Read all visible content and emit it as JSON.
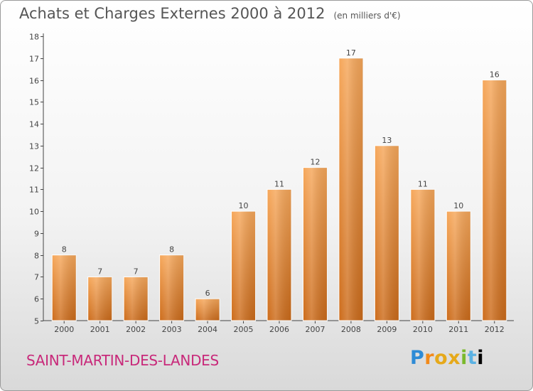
{
  "header": {
    "title": "Achats et Charges Externes 2000 à 2012",
    "unit": "(en milliers d'€)"
  },
  "footer": {
    "commune": "SAINT-MARTIN-DES-LANDES",
    "logo": "Proxiti"
  },
  "colors": {
    "bar_top": "#f6a75a",
    "bar_bottom": "#cc6b1a",
    "axis": "#444444",
    "text": "#444444"
  },
  "chart_data": {
    "type": "bar",
    "categories": [
      "2000",
      "2001",
      "2002",
      "2003",
      "2004",
      "2005",
      "2006",
      "2007",
      "2008",
      "2009",
      "2010",
      "2011",
      "2012"
    ],
    "values": [
      8,
      7,
      7,
      8,
      6,
      10,
      11,
      12,
      17,
      13,
      11,
      10,
      16
    ],
    "title": "Achats et Charges Externes 2000 à 2012",
    "xlabel": "",
    "ylabel": "",
    "ylim": [
      5,
      18
    ],
    "yticks": [
      5,
      6,
      7,
      8,
      9,
      10,
      11,
      12,
      13,
      14,
      15,
      16,
      17,
      18
    ],
    "grid": false,
    "data_labels": true
  }
}
